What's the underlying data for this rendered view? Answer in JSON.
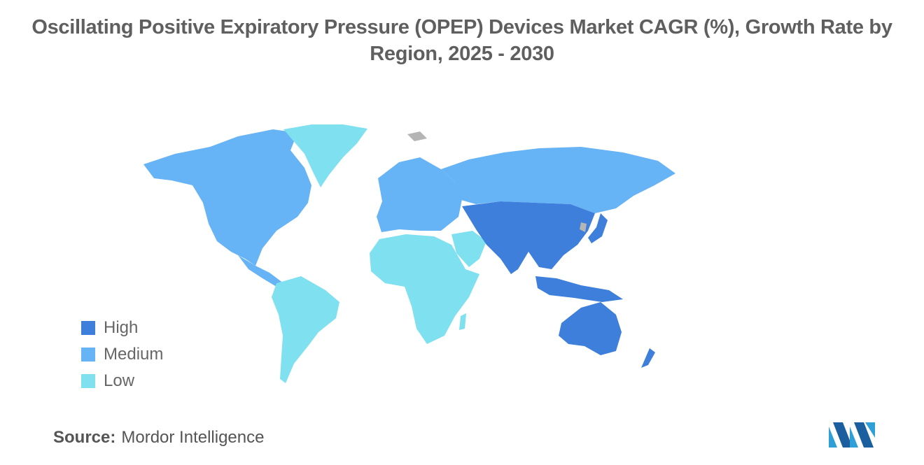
{
  "title": {
    "line1": "Oscillating Positive Expiratory Pressure (OPEP) Devices Market CAGR (%), Growth Rate by",
    "line2": "Region, 2025 - 2030"
  },
  "legend": [
    {
      "label": "High",
      "color": "#3d7fdb"
    },
    {
      "label": "Medium",
      "color": "#66b3f5"
    },
    {
      "label": "Low",
      "color": "#7fe0f0"
    }
  ],
  "regions": [
    {
      "name": "North America",
      "level": "Medium"
    },
    {
      "name": "Greenland",
      "level": "Low"
    },
    {
      "name": "South America",
      "level": "Low"
    },
    {
      "name": "Europe",
      "level": "Medium"
    },
    {
      "name": "Russia",
      "level": "Medium"
    },
    {
      "name": "Africa",
      "level": "Low"
    },
    {
      "name": "Middle East",
      "level": "Low"
    },
    {
      "name": "Asia-Pacific",
      "level": "High"
    },
    {
      "name": "Australia",
      "level": "High"
    }
  ],
  "colors": {
    "no_data": "#b5b5b5",
    "high": "#3d7fdb",
    "medium": "#66b3f5",
    "low": "#7fe0f0"
  },
  "source": {
    "label": "Source:",
    "value": "Mordor Intelligence"
  }
}
